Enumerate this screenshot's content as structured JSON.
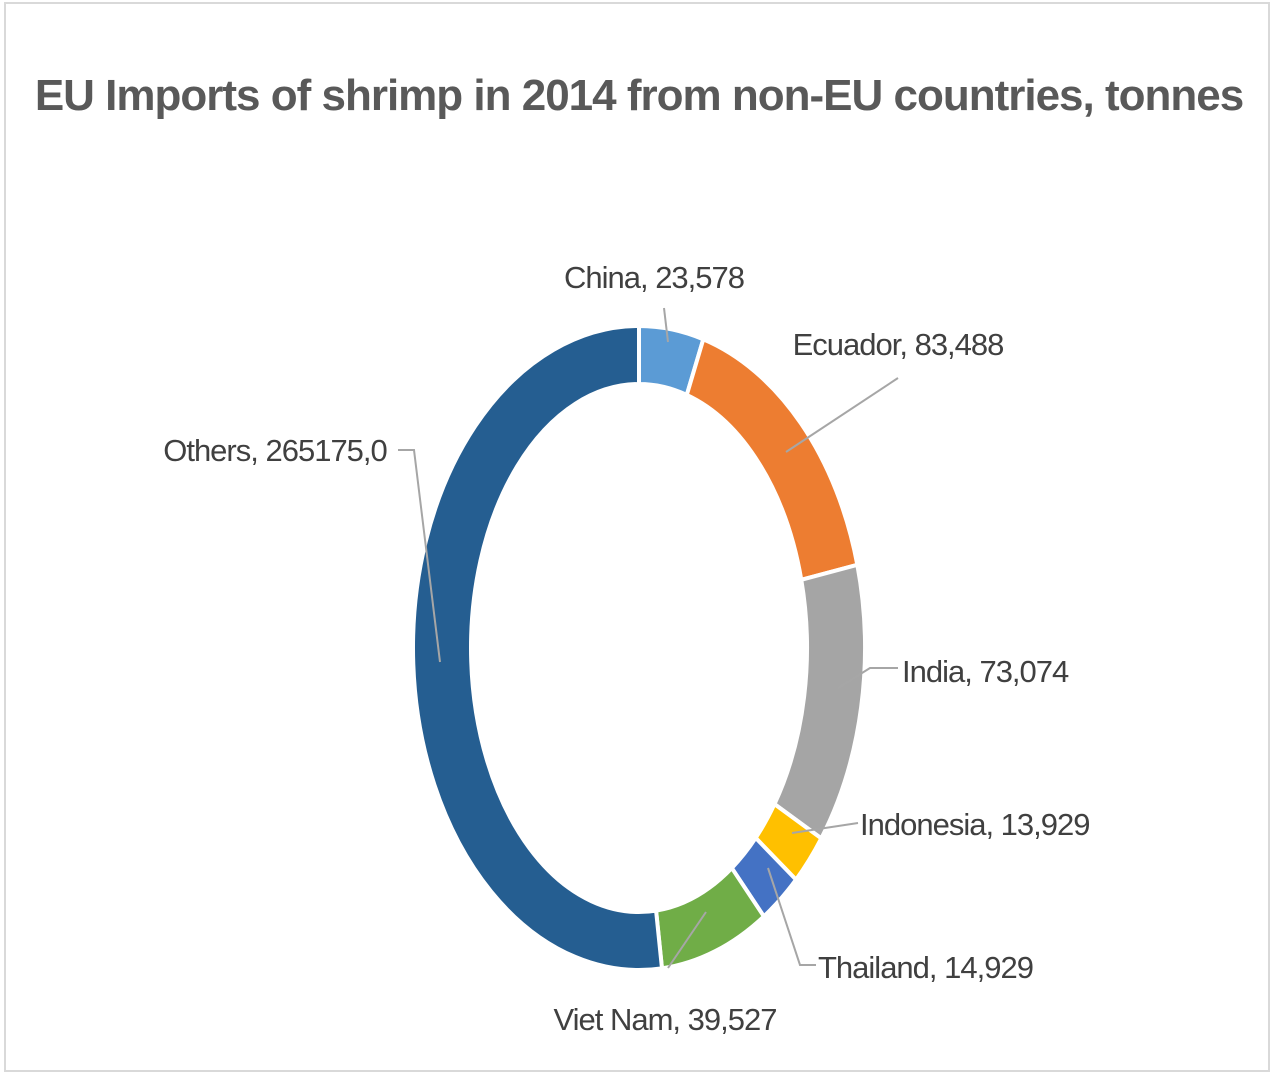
{
  "chart_data": {
    "type": "pie",
    "style": "donut",
    "title": "EU Imports of shrimp in 2014 from non-EU countries, tonnes",
    "labels": [
      "China, 23,578",
      "Ecuador, 83,488",
      "India, 73,074",
      "Indonesia, 13,929",
      "Thailand, 14,929",
      "Viet Nam, 39,527",
      "Others, 265175,0"
    ],
    "slices": [
      {
        "name": "China",
        "value": 23578,
        "color": "#5b9bd5"
      },
      {
        "name": "Ecuador",
        "value": 83488,
        "color": "#ed7d31"
      },
      {
        "name": "India",
        "value": 73074,
        "color": "#a5a5a5"
      },
      {
        "name": "Indonesia",
        "value": 13929,
        "color": "#ffc000"
      },
      {
        "name": "Thailand",
        "value": 14929,
        "color": "#4472c4"
      },
      {
        "name": "Viet Nam",
        "value": 39527,
        "color": "#70ad47"
      },
      {
        "name": "Others",
        "value": 265175,
        "color": "#255e91"
      }
    ],
    "legend": "none",
    "data_labels": "outside-with-leader-lines"
  }
}
